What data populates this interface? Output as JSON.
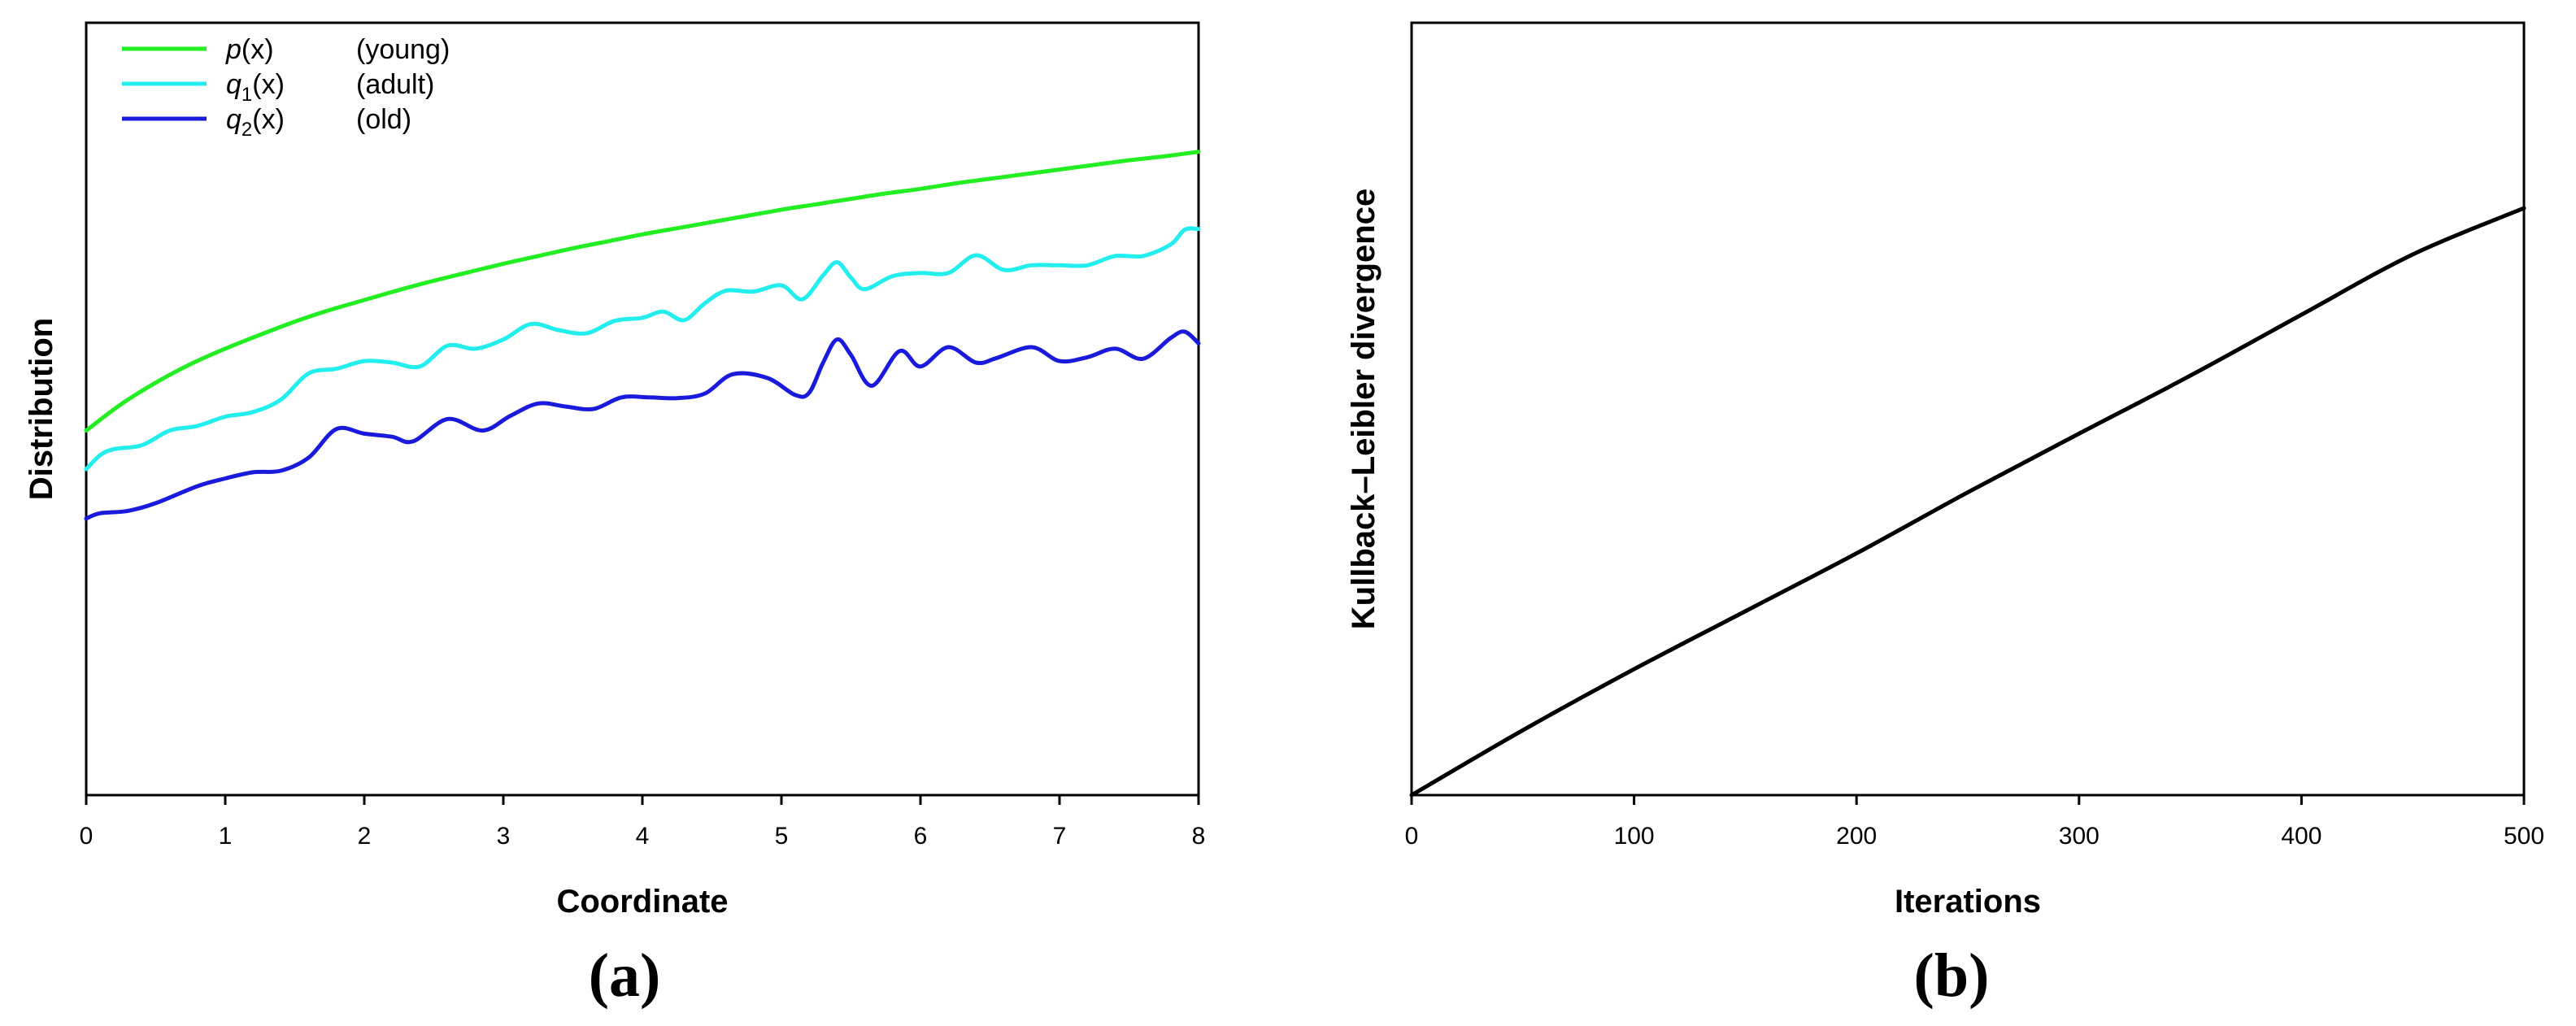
{
  "chart_data": [
    {
      "type": "line",
      "panel_label": "(a)",
      "xlabel": "Coordinate",
      "ylabel": "Distribution",
      "xlim": [
        0,
        8
      ],
      "ylim": [
        0,
        1
      ],
      "xticks": [
        "0",
        "1",
        "2",
        "3",
        "4",
        "5",
        "6",
        "7",
        "8"
      ],
      "y_tick_labels_shown": false,
      "legend_position": "top-left",
      "series": [
        {
          "name": "p(x)",
          "legend_base": "p",
          "legend_sub": "",
          "legend_arg": "(x)",
          "legend_desc": "(young)",
          "color": "#22ee22",
          "points": [
            [
              0,
              0.472
            ],
            [
              0.25,
              0.506
            ],
            [
              0.5,
              0.534
            ],
            [
              0.75,
              0.558
            ],
            [
              1,
              0.578
            ],
            [
              1.25,
              0.596
            ],
            [
              1.5,
              0.613
            ],
            [
              1.75,
              0.628
            ],
            [
              2,
              0.641
            ],
            [
              2.25,
              0.654
            ],
            [
              2.5,
              0.666
            ],
            [
              2.75,
              0.677
            ],
            [
              3,
              0.688
            ],
            [
              3.25,
              0.698
            ],
            [
              3.5,
              0.708
            ],
            [
              3.75,
              0.717
            ],
            [
              4,
              0.726
            ],
            [
              4.25,
              0.734
            ],
            [
              4.5,
              0.742
            ],
            [
              4.75,
              0.75
            ],
            [
              5,
              0.758
            ],
            [
              5.25,
              0.765
            ],
            [
              5.5,
              0.772
            ],
            [
              5.75,
              0.779
            ],
            [
              6,
              0.785
            ],
            [
              6.25,
              0.792
            ],
            [
              6.5,
              0.798
            ],
            [
              6.75,
              0.804
            ],
            [
              7,
              0.81
            ],
            [
              7.25,
              0.816
            ],
            [
              7.5,
              0.822
            ],
            [
              7.75,
              0.827
            ],
            [
              8,
              0.833
            ]
          ]
        },
        {
          "name": "q1(x)",
          "legend_base": "q",
          "legend_sub": "1",
          "legend_arg": "(x)",
          "legend_desc": "(adult)",
          "color": "#22eeee",
          "points": [
            [
              0,
              0.422
            ],
            [
              0.1,
              0.44
            ],
            [
              0.2,
              0.448
            ],
            [
              0.4,
              0.453
            ],
            [
              0.6,
              0.472
            ],
            [
              0.8,
              0.478
            ],
            [
              1,
              0.49
            ],
            [
              1.2,
              0.496
            ],
            [
              1.4,
              0.512
            ],
            [
              1.6,
              0.546
            ],
            [
              1.8,
              0.552
            ],
            [
              2,
              0.562
            ],
            [
              2.2,
              0.56
            ],
            [
              2.4,
              0.555
            ],
            [
              2.6,
              0.582
            ],
            [
              2.8,
              0.578
            ],
            [
              3,
              0.59
            ],
            [
              3.2,
              0.61
            ],
            [
              3.4,
              0.602
            ],
            [
              3.6,
              0.598
            ],
            [
              3.8,
              0.614
            ],
            [
              4,
              0.618
            ],
            [
              4.15,
              0.626
            ],
            [
              4.3,
              0.615
            ],
            [
              4.45,
              0.637
            ],
            [
              4.6,
              0.653
            ],
            [
              4.8,
              0.652
            ],
            [
              5,
              0.66
            ],
            [
              5.15,
              0.642
            ],
            [
              5.3,
              0.673
            ],
            [
              5.4,
              0.69
            ],
            [
              5.5,
              0.67
            ],
            [
              5.6,
              0.655
            ],
            [
              5.8,
              0.672
            ],
            [
              6,
              0.676
            ],
            [
              6.2,
              0.676
            ],
            [
              6.4,
              0.699
            ],
            [
              6.6,
              0.68
            ],
            [
              6.8,
              0.686
            ],
            [
              7,
              0.686
            ],
            [
              7.2,
              0.686
            ],
            [
              7.4,
              0.698
            ],
            [
              7.6,
              0.698
            ],
            [
              7.8,
              0.713
            ],
            [
              7.9,
              0.732
            ],
            [
              8,
              0.733
            ]
          ]
        },
        {
          "name": "q2(x)",
          "legend_base": "q",
          "legend_sub": "2",
          "legend_arg": "(x)",
          "legend_desc": "(old)",
          "color": "#1a1add",
          "points": [
            [
              0,
              0.358
            ],
            [
              0.1,
              0.365
            ],
            [
              0.3,
              0.368
            ],
            [
              0.5,
              0.378
            ],
            [
              0.8,
              0.4
            ],
            [
              1,
              0.41
            ],
            [
              1.2,
              0.418
            ],
            [
              1.4,
              0.42
            ],
            [
              1.6,
              0.437
            ],
            [
              1.8,
              0.474
            ],
            [
              2,
              0.468
            ],
            [
              2.2,
              0.464
            ],
            [
              2.35,
              0.458
            ],
            [
              2.6,
              0.487
            ],
            [
              2.85,
              0.472
            ],
            [
              3.05,
              0.491
            ],
            [
              3.25,
              0.507
            ],
            [
              3.45,
              0.503
            ],
            [
              3.65,
              0.5
            ],
            [
              3.85,
              0.515
            ],
            [
              4.05,
              0.515
            ],
            [
              4.25,
              0.514
            ],
            [
              4.45,
              0.52
            ],
            [
              4.65,
              0.545
            ],
            [
              4.9,
              0.54
            ],
            [
              5.1,
              0.518
            ],
            [
              5.2,
              0.521
            ],
            [
              5.3,
              0.56
            ],
            [
              5.4,
              0.59
            ],
            [
              5.5,
              0.57
            ],
            [
              5.65,
              0.53
            ],
            [
              5.85,
              0.575
            ],
            [
              6,
              0.555
            ],
            [
              6.2,
              0.58
            ],
            [
              6.4,
              0.56
            ],
            [
              6.55,
              0.566
            ],
            [
              6.8,
              0.58
            ],
            [
              7,
              0.562
            ],
            [
              7.2,
              0.567
            ],
            [
              7.4,
              0.578
            ],
            [
              7.6,
              0.565
            ],
            [
              7.8,
              0.592
            ],
            [
              7.9,
              0.6
            ],
            [
              8,
              0.585
            ]
          ]
        }
      ]
    },
    {
      "type": "line",
      "panel_label": "(b)",
      "xlabel": "Iterations",
      "ylabel": "Kullback–Leibler divergence",
      "xlim": [
        0,
        500
      ],
      "ylim": [
        0,
        1
      ],
      "xticks": [
        "0",
        "100",
        "200",
        "300",
        "400",
        "500"
      ],
      "y_tick_labels_shown": false,
      "series": [
        {
          "color": "#000000",
          "points": [
            [
              0,
              0
            ],
            [
              50,
              0.084
            ],
            [
              100,
              0.163
            ],
            [
              150,
              0.238
            ],
            [
              200,
              0.313
            ],
            [
              250,
              0.392
            ],
            [
              300,
              0.468
            ],
            [
              350,
              0.543
            ],
            [
              400,
              0.622
            ],
            [
              450,
              0.7
            ],
            [
              500,
              0.76
            ]
          ]
        }
      ]
    }
  ]
}
